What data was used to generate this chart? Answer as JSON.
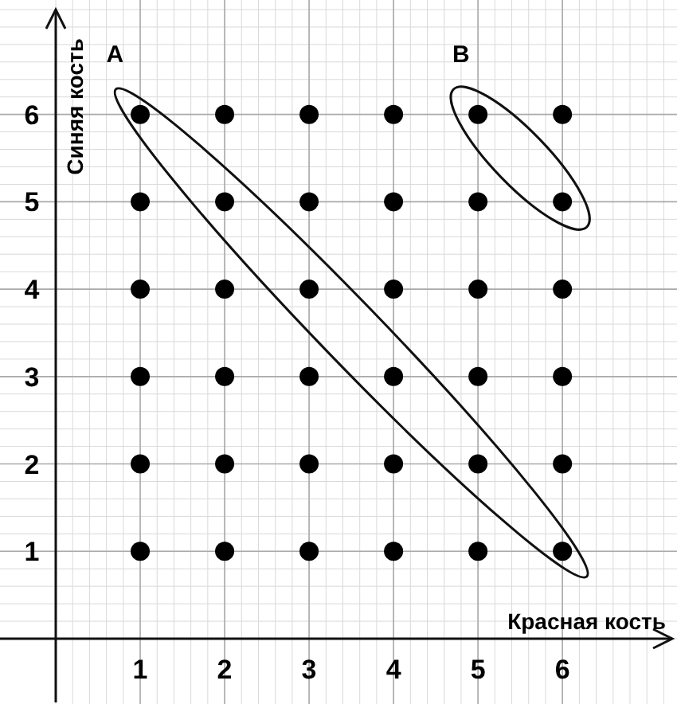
{
  "chart_data": {
    "type": "scatter",
    "xlabel": "Красная кость",
    "ylabel": "Синяя кость",
    "xlim": [
      0,
      7.3
    ],
    "ylim": [
      0,
      7.2
    ],
    "xticks": [
      1,
      2,
      3,
      4,
      5,
      6
    ],
    "yticks": [
      1,
      2,
      3,
      4,
      5,
      6
    ],
    "grid": true,
    "marker": "circle",
    "series": [
      {
        "color": "#000000",
        "x": [
          1,
          2,
          3,
          4,
          5,
          6,
          1,
          2,
          3,
          4,
          5,
          6,
          1,
          2,
          3,
          4,
          5,
          6,
          1,
          2,
          3,
          4,
          5,
          6,
          1,
          2,
          3,
          4,
          5,
          6,
          1,
          2,
          3,
          4,
          5,
          6
        ],
        "values": [
          1,
          1,
          1,
          1,
          1,
          1,
          2,
          2,
          2,
          2,
          2,
          2,
          3,
          3,
          3,
          3,
          3,
          3,
          4,
          4,
          4,
          4,
          4,
          4,
          5,
          5,
          5,
          5,
          5,
          5,
          6,
          6,
          6,
          6,
          6,
          6
        ]
      }
    ],
    "annotations": [
      "A",
      "B"
    ]
  }
}
